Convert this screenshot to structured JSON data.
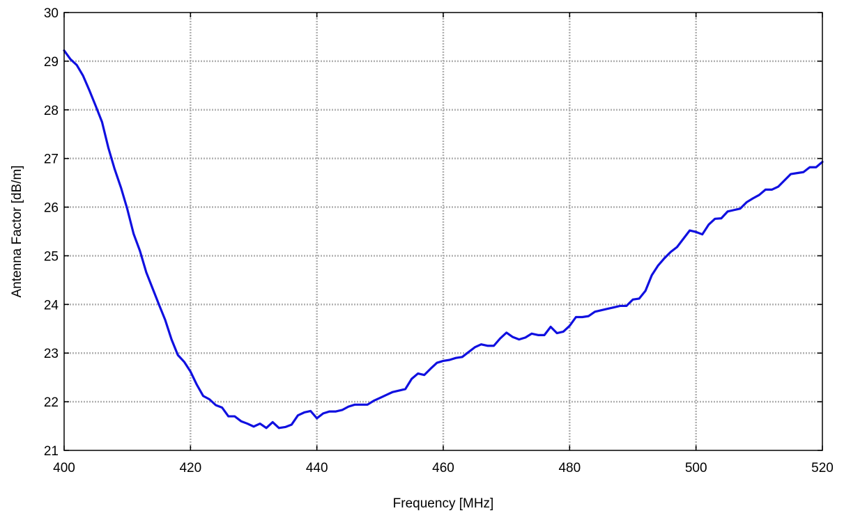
{
  "chart_data": {
    "type": "line",
    "title": "",
    "xlabel": "Frequency [MHz]",
    "ylabel": "Antenna Factor [dB/m]",
    "xlim": [
      400,
      520
    ],
    "ylim": [
      21,
      30
    ],
    "x_ticks": [
      "400",
      "420",
      "440",
      "460",
      "480",
      "500",
      "520"
    ],
    "y_ticks": [
      "21",
      "22",
      "23",
      "24",
      "25",
      "26",
      "27",
      "28",
      "29",
      "30"
    ],
    "x_tick_values": [
      400,
      420,
      440,
      460,
      480,
      500,
      520
    ],
    "y_tick_values": [
      21,
      22,
      23,
      24,
      25,
      26,
      27,
      28,
      29,
      30
    ],
    "grid": true,
    "legend": "none",
    "series": [
      {
        "color": "#1010e0",
        "x": [
          400,
          401,
          402,
          403,
          404,
          405,
          406,
          407,
          408,
          409,
          410,
          411,
          412,
          413,
          414,
          415,
          416,
          417,
          418,
          419,
          420,
          421,
          422,
          423,
          424,
          425,
          426,
          427,
          428,
          429,
          430,
          431,
          432,
          433,
          434,
          435,
          436,
          437,
          438,
          439,
          440,
          441,
          442,
          443,
          444,
          445,
          446,
          447,
          448,
          449,
          450,
          451,
          452,
          453,
          454,
          455,
          456,
          457,
          458,
          459,
          460,
          461,
          462,
          463,
          464,
          465,
          466,
          467,
          468,
          469,
          470,
          471,
          472,
          473,
          474,
          475,
          476,
          477,
          478,
          479,
          480,
          481,
          482,
          483,
          484,
          485,
          486,
          487,
          488,
          489,
          490,
          491,
          492,
          493,
          494,
          495,
          496,
          497,
          498,
          499,
          500,
          501,
          502,
          503,
          504,
          505,
          506,
          507,
          508,
          509,
          510,
          511,
          512,
          513,
          514,
          515,
          516,
          517,
          518,
          519,
          520
        ],
        "values": [
          29.22,
          29.04,
          28.92,
          28.7,
          28.4,
          28.08,
          27.75,
          27.22,
          26.78,
          26.4,
          25.96,
          25.45,
          25.1,
          24.66,
          24.33,
          24.0,
          23.68,
          23.28,
          22.96,
          22.82,
          22.62,
          22.35,
          22.12,
          22.05,
          21.93,
          21.88,
          21.7,
          21.7,
          21.6,
          21.55,
          21.49,
          21.55,
          21.46,
          21.58,
          21.46,
          21.48,
          21.53,
          21.72,
          21.78,
          21.81,
          21.66,
          21.76,
          21.8,
          21.8,
          21.83,
          21.9,
          21.94,
          21.94,
          21.94,
          22.02,
          22.08,
          22.14,
          22.2,
          22.23,
          22.26,
          22.47,
          22.58,
          22.55,
          22.68,
          22.8,
          22.84,
          22.86,
          22.9,
          22.92,
          23.02,
          23.12,
          23.18,
          23.15,
          23.15,
          23.3,
          23.42,
          23.33,
          23.28,
          23.32,
          23.4,
          23.37,
          23.37,
          23.54,
          23.41,
          23.44,
          23.56,
          23.74,
          23.74,
          23.76,
          23.85,
          23.88,
          23.91,
          23.94,
          23.97,
          23.97,
          24.1,
          24.12,
          24.28,
          24.6,
          24.8,
          24.95,
          25.08,
          25.18,
          25.35,
          25.52,
          25.49,
          25.44,
          25.64,
          25.76,
          25.77,
          25.91,
          25.94,
          25.97,
          26.1,
          26.18,
          26.25,
          26.36,
          26.36,
          26.42,
          26.55,
          26.68,
          26.7,
          26.72,
          26.82,
          26.82,
          26.93
        ]
      }
    ]
  }
}
